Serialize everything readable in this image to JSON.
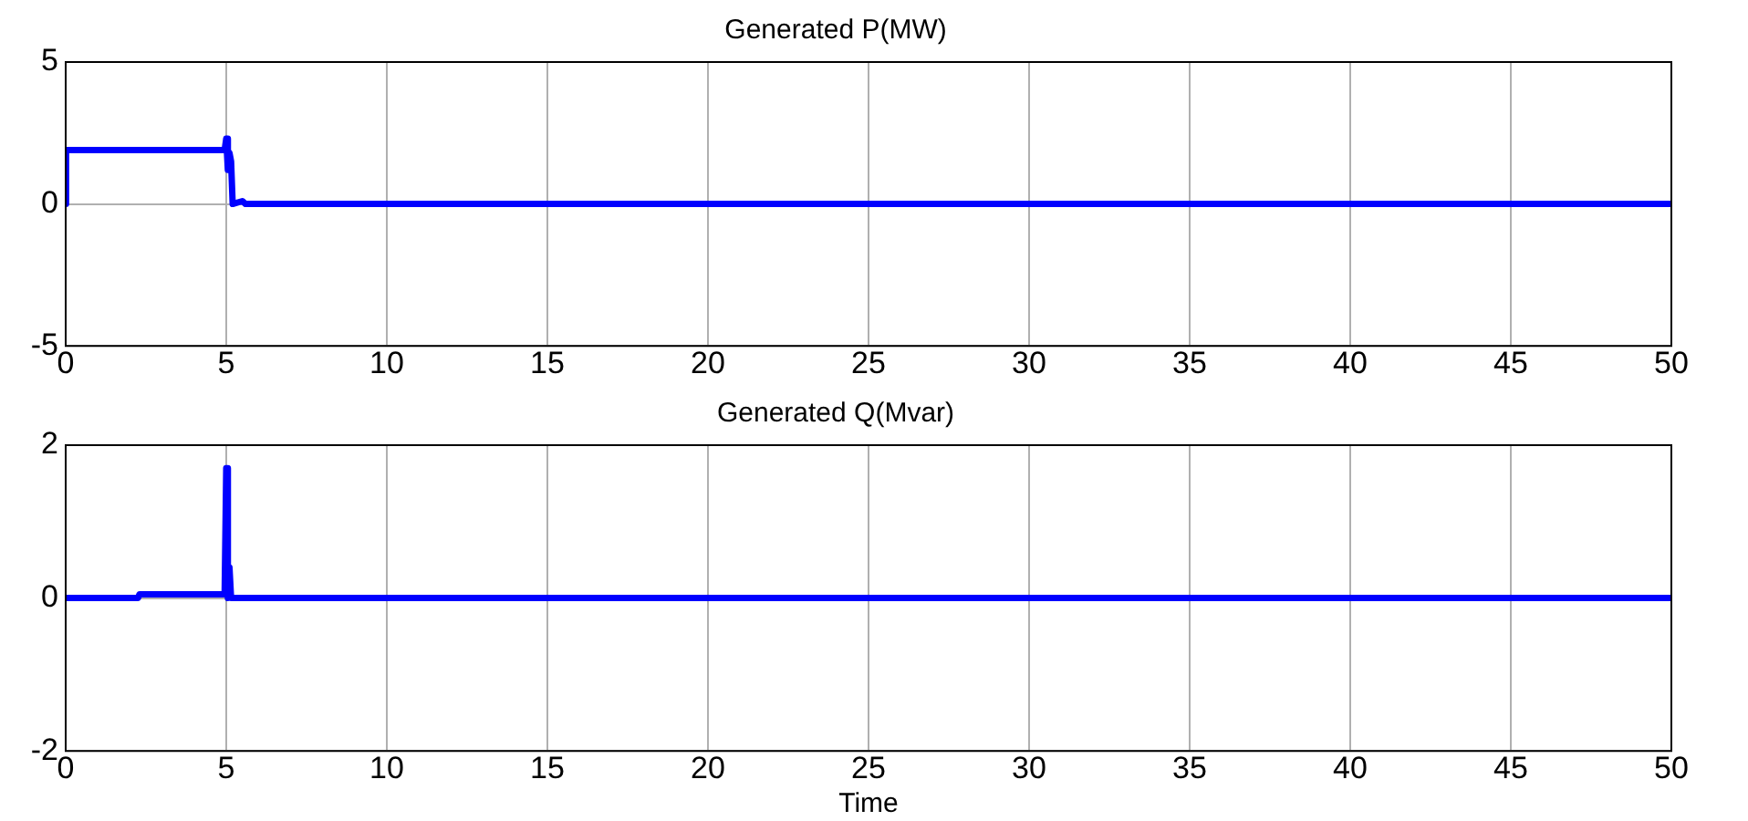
{
  "chart_data": [
    {
      "type": "line",
      "title": "Generated P(MW)",
      "xlim": [
        0,
        50
      ],
      "xticks": [
        0,
        5,
        10,
        15,
        20,
        25,
        30,
        35,
        40,
        45,
        50
      ],
      "ylim": [
        -5,
        5
      ],
      "yticks": [
        -5,
        0,
        5
      ],
      "grid": true,
      "legend": false,
      "series": [
        {
          "color": "#0000ff",
          "x": [
            0,
            0.01,
            4.95,
            5.0,
            5.05,
            5.1,
            5.15,
            5.2,
            5.5,
            5.6,
            10,
            50
          ],
          "values": [
            0,
            1.9,
            1.9,
            2.3,
            1.2,
            1.8,
            1.5,
            0,
            0.1,
            0,
            0,
            0
          ]
        }
      ]
    },
    {
      "type": "line",
      "title": "Generated Q(Mvar)",
      "xlabel": "Time",
      "xlim": [
        0,
        50
      ],
      "xticks": [
        0,
        5,
        10,
        15,
        20,
        25,
        30,
        35,
        40,
        45,
        50
      ],
      "ylim": [
        -2,
        2
      ],
      "yticks": [
        -2,
        0,
        2
      ],
      "grid": true,
      "legend": false,
      "series": [
        {
          "color": "#0000ff",
          "x": [
            0,
            2.25,
            2.3,
            4.95,
            5.0,
            5.05,
            5.1,
            5.15,
            5.2,
            10,
            50
          ],
          "values": [
            0,
            0,
            0.05,
            0.05,
            1.7,
            0,
            0.4,
            0,
            0,
            0,
            0
          ]
        }
      ]
    }
  ]
}
